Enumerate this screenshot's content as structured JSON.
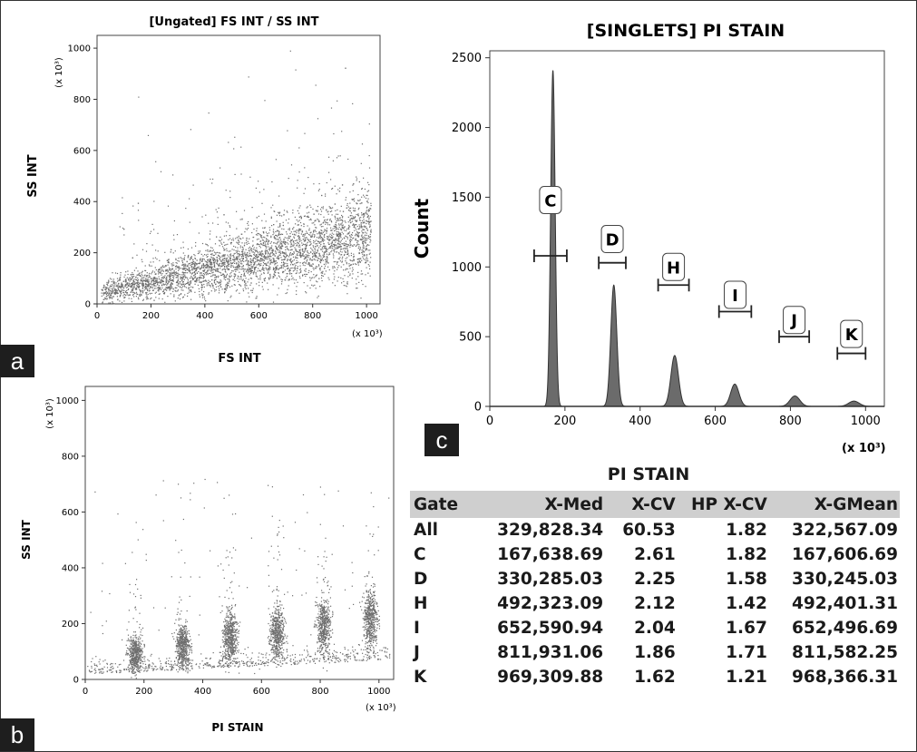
{
  "panels": {
    "a": {
      "badge": "a"
    },
    "b": {
      "badge": "b"
    },
    "c": {
      "badge": "c"
    }
  },
  "chart_data": [
    {
      "panel": "a",
      "type": "scatter",
      "title": "[Ungated] FS INT / SS INT",
      "xlabel": "FS INT",
      "ylabel": "SS INT",
      "x_unit": "(x 10³)",
      "y_unit": "(x 10³)",
      "xlim": [
        0,
        1050
      ],
      "ylim": [
        0,
        1050
      ],
      "x_ticks": [
        0,
        200,
        400,
        600,
        800,
        1000
      ],
      "y_ticks": [
        0,
        200,
        400,
        600,
        800,
        1000
      ],
      "point_color": "#6e6e6e",
      "density": "dense cloud rising from near origin; SS INT increases roughly linearly with FS INT (about 60 at FS 100, 170 at FS 400, 270 at FS 1000), with sparse scatter up to 1000"
    },
    {
      "panel": "b",
      "type": "scatter",
      "title": "",
      "xlabel": "PI STAIN",
      "ylabel": "SS INT",
      "x_unit": "(x 10³)",
      "y_unit": "(x 10³)",
      "xlim": [
        0,
        1050
      ],
      "ylim": [
        0,
        1050
      ],
      "x_ticks": [
        0,
        200,
        400,
        600,
        800,
        1000
      ],
      "y_ticks": [
        0,
        200,
        400,
        600,
        800,
        1000
      ],
      "point_color": "#6e6e6e",
      "clusters": [
        {
          "x": 170,
          "y_center": 90,
          "y_spread": 60
        },
        {
          "x": 330,
          "y_center": 120,
          "y_spread": 70
        },
        {
          "x": 492,
          "y_center": 150,
          "y_spread": 80
        },
        {
          "x": 652,
          "y_center": 170,
          "y_spread": 85
        },
        {
          "x": 811,
          "y_center": 190,
          "y_spread": 90
        },
        {
          "x": 969,
          "y_center": 215,
          "y_spread": 95
        }
      ]
    },
    {
      "panel": "c",
      "type": "area",
      "title": "[SINGLETS] PI STAIN",
      "xlabel": "",
      "ylabel": "Count",
      "x_unit": "(x 10³)",
      "xlim": [
        0,
        1050
      ],
      "ylim": [
        0,
        2550
      ],
      "x_ticks": [
        0,
        200,
        400,
        600,
        800,
        1000
      ],
      "y_ticks": [
        0,
        500,
        1000,
        1500,
        2000,
        2500
      ],
      "fill_color": "#6b6b6b",
      "peaks": [
        {
          "x": 168,
          "count": 2410,
          "sigma": 6
        },
        {
          "x": 330,
          "count": 870,
          "sigma": 8
        },
        {
          "x": 492,
          "count": 365,
          "sigma": 10
        },
        {
          "x": 652,
          "count": 160,
          "sigma": 11
        },
        {
          "x": 812,
          "count": 75,
          "sigma": 13
        },
        {
          "x": 969,
          "count": 38,
          "sigma": 14
        }
      ],
      "gates": [
        {
          "label": "C",
          "x_min": 118,
          "x_max": 205,
          "y": 1080,
          "label_y": 1480
        },
        {
          "label": "D",
          "x_min": 290,
          "x_max": 362,
          "y": 1030,
          "label_y": 1200
        },
        {
          "label": "H",
          "x_min": 448,
          "x_max": 530,
          "y": 870,
          "label_y": 1000
        },
        {
          "label": "I",
          "x_min": 610,
          "x_max": 696,
          "y": 680,
          "label_y": 800
        },
        {
          "label": "J",
          "x_min": 770,
          "x_max": 850,
          "y": 500,
          "label_y": 620
        },
        {
          "label": "K",
          "x_min": 925,
          "x_max": 1000,
          "y": 380,
          "label_y": 520
        }
      ]
    },
    {
      "panel": "c-table",
      "type": "table",
      "title": "PI STAIN",
      "columns": [
        "Gate",
        "X-Med",
        "X-CV",
        "HP X-CV",
        "X-GMean"
      ],
      "rows": [
        [
          "All",
          "329,828.34",
          "60.53",
          "1.82",
          "322,567.09"
        ],
        [
          "C",
          "167,638.69",
          "2.61",
          "1.82",
          "167,606.69"
        ],
        [
          "D",
          "330,285.03",
          "2.25",
          "1.58",
          "330,245.03"
        ],
        [
          "H",
          "492,323.09",
          "2.12",
          "1.42",
          "492,401.31"
        ],
        [
          "I",
          "652,590.94",
          "2.04",
          "1.67",
          "652,496.69"
        ],
        [
          "J",
          "811,931.06",
          "1.86",
          "1.71",
          "811,582.25"
        ],
        [
          "K",
          "969,309.88",
          "1.62",
          "1.21",
          "968,366.31"
        ]
      ]
    }
  ]
}
